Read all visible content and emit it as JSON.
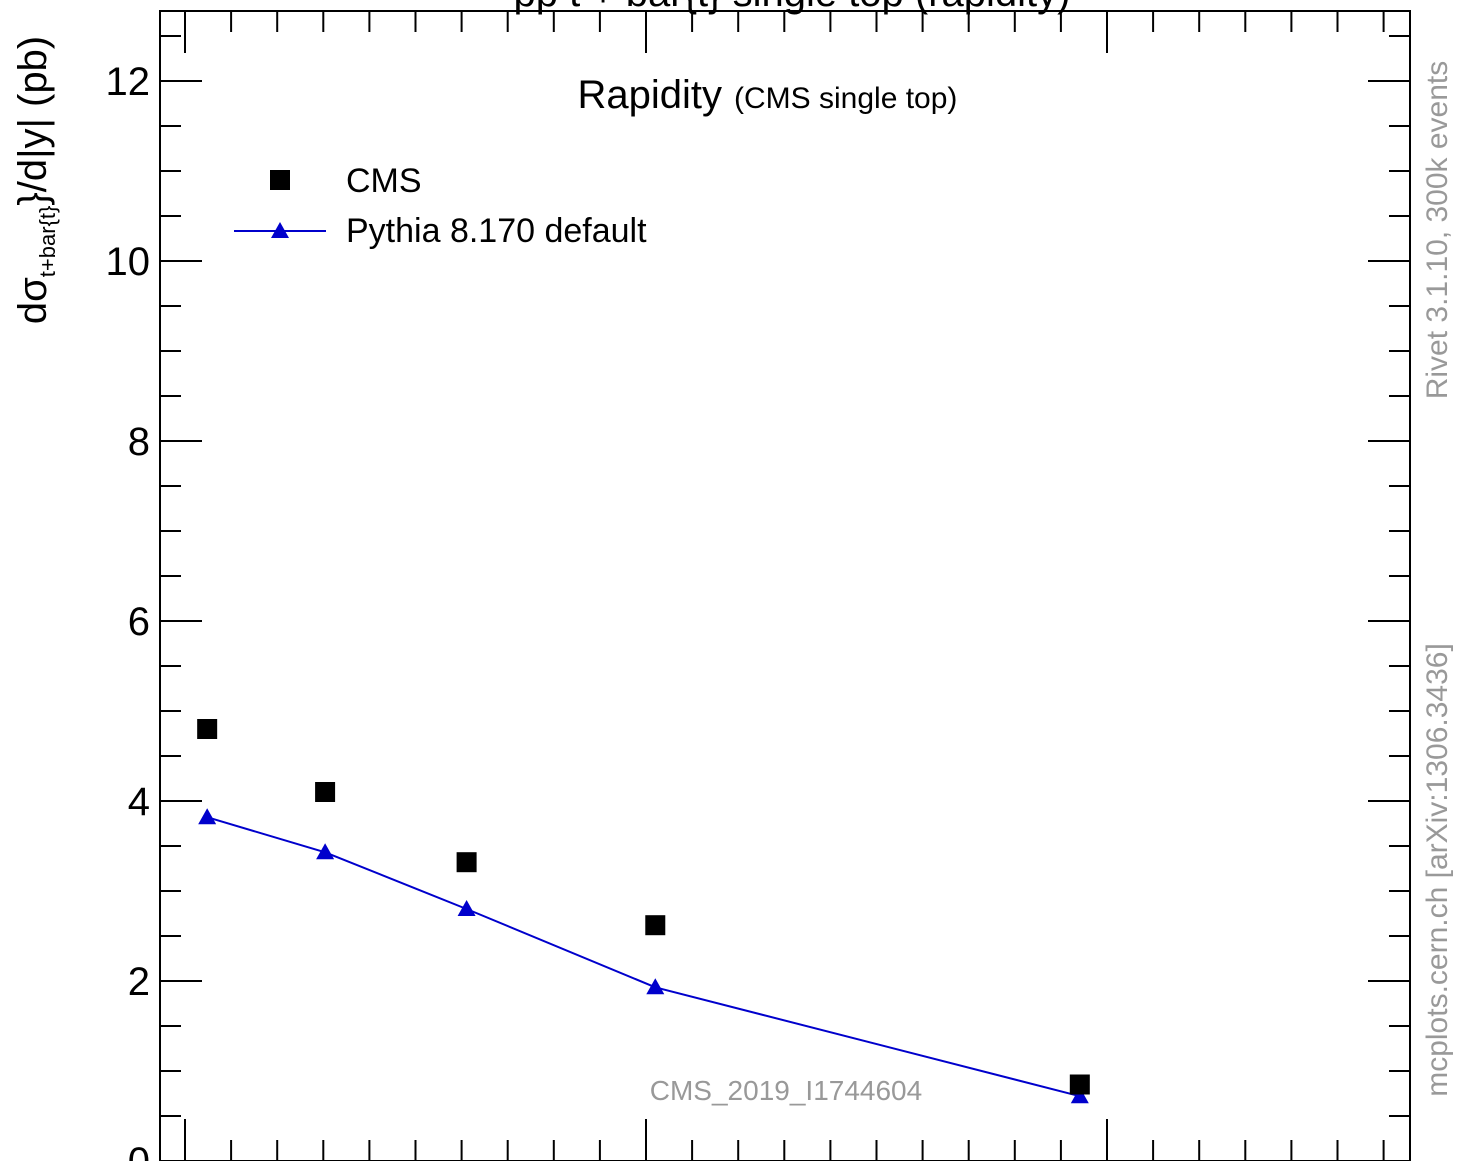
{
  "header": {
    "top_title_fragment": "pp          t + bar{t} single top (rapidity)"
  },
  "side_info": {
    "generator_info": "Rivet 3.1.10,  300k events",
    "source_info": "mcplots.cern.ch [arXiv:1306.3436]"
  },
  "chart_data": {
    "type": "scatter",
    "title": "Rapidity",
    "subtitle": "(CMS single top)",
    "ylabel_main": "dσ",
    "ylabel_sub": "t+bar{t}",
    "ylabel_rest": "}/d|y|  (pb)",
    "analysis_label": "CMS_2019_I1744604",
    "ylim": [
      0,
      12.8
    ],
    "xlim": [
      0,
      2.65
    ],
    "yticks": [
      0,
      2,
      4,
      6,
      8,
      10,
      12
    ],
    "grid": false,
    "legend_position": "top-left",
    "series": [
      {
        "name": "CMS",
        "marker": "square",
        "color": "#000000",
        "points": [
          {
            "x": 0.1,
            "y": 4.8
          },
          {
            "x": 0.35,
            "y": 4.1
          },
          {
            "x": 0.65,
            "y": 3.32
          },
          {
            "x": 1.05,
            "y": 2.62
          },
          {
            "x": 1.95,
            "y": 0.85
          }
        ]
      },
      {
        "name": "Pythia 8.170 default",
        "marker": "triangle",
        "line": true,
        "color": "#0000cc",
        "points": [
          {
            "x": 0.1,
            "y": 3.82
          },
          {
            "x": 0.35,
            "y": 3.43
          },
          {
            "x": 0.65,
            "y": 2.8
          },
          {
            "x": 1.05,
            "y": 1.93
          },
          {
            "x": 1.95,
            "y": 0.72
          }
        ]
      }
    ]
  }
}
